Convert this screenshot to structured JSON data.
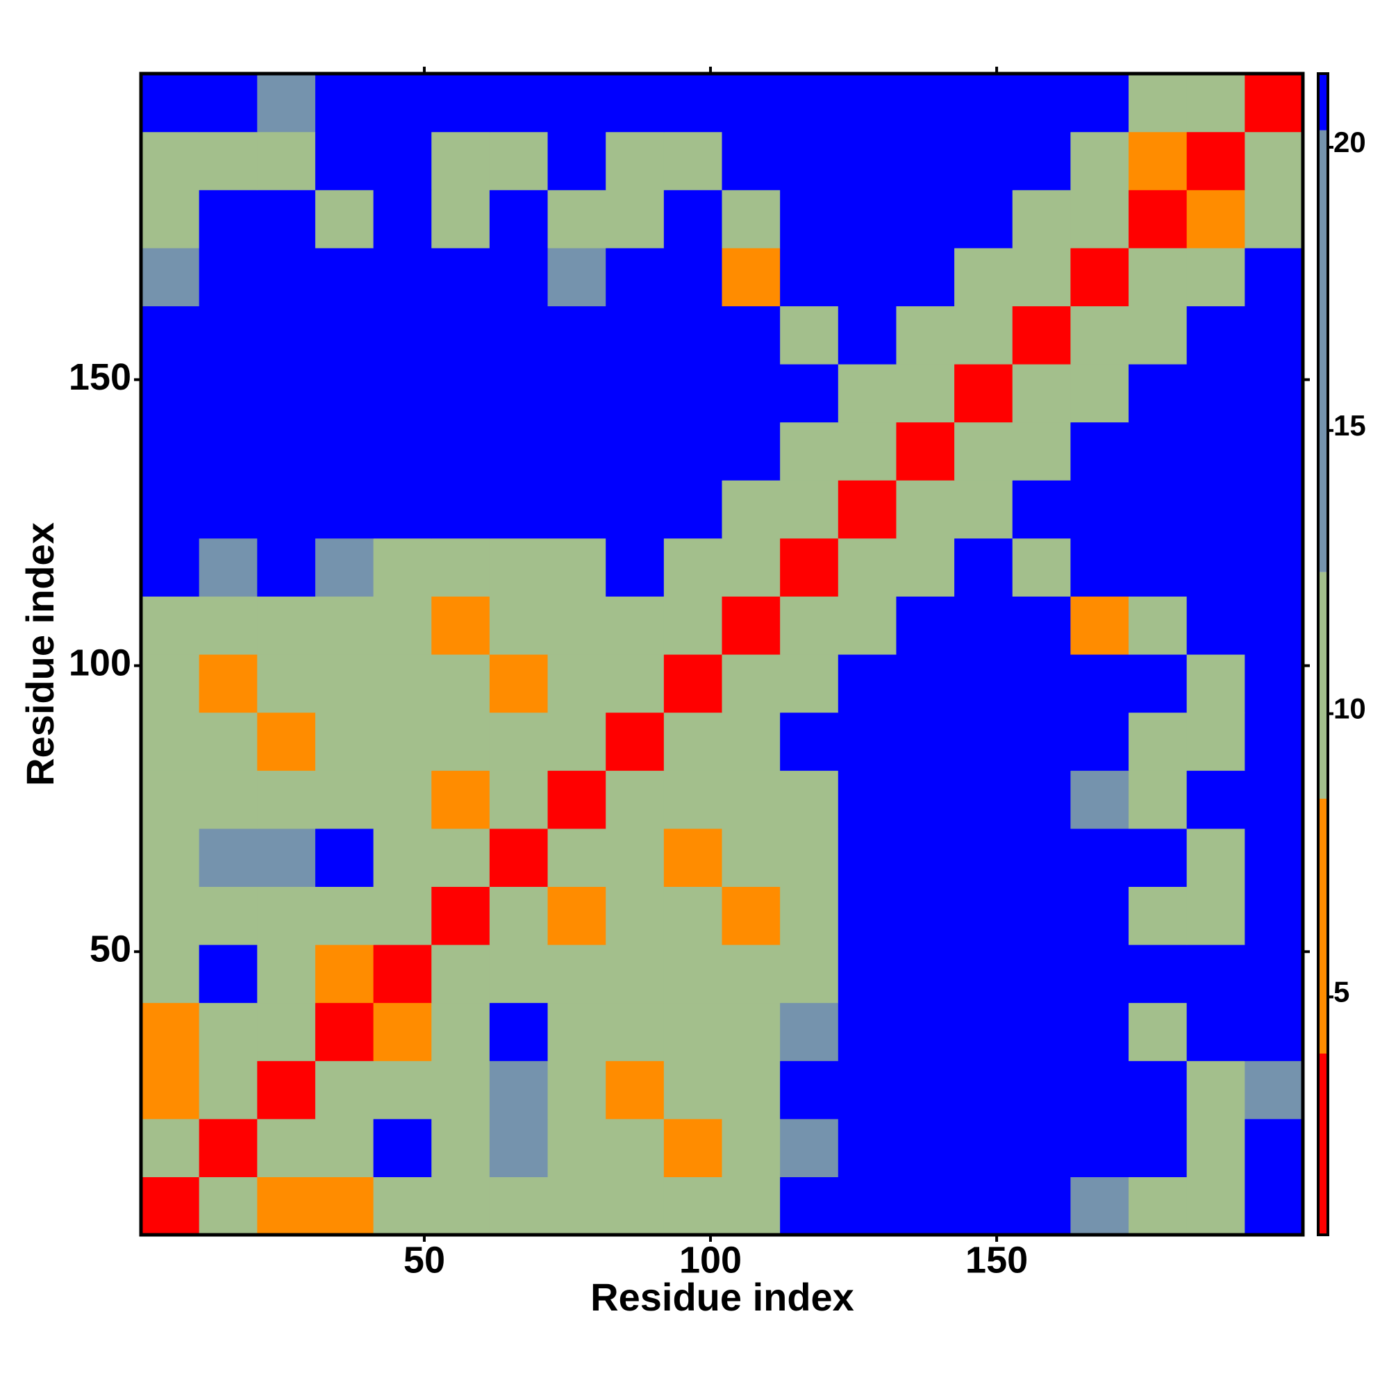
{
  "chart_data": {
    "type": "heatmap",
    "x_label": "Residue index",
    "y_label": "Residue index",
    "xlim": [
      0.5,
      203.5
    ],
    "ylim": [
      0.5,
      203.5
    ],
    "xticks": [
      50,
      100,
      150
    ],
    "yticks": [
      50,
      100,
      150
    ],
    "z": [
      [
        3,
        9,
        6,
        6,
        11,
        11,
        11,
        11,
        11,
        11,
        11,
        21,
        21,
        21,
        21,
        21,
        15,
        11,
        11,
        21
      ],
      [
        9,
        3,
        9,
        11,
        21,
        11,
        15,
        11,
        11,
        6,
        11,
        15,
        21,
        21,
        21,
        21,
        21,
        21,
        11,
        21
      ],
      [
        6,
        9,
        3,
        9,
        11,
        11,
        15,
        11,
        6,
        11,
        11,
        21,
        21,
        21,
        21,
        21,
        21,
        21,
        11,
        15
      ],
      [
        6,
        11,
        9,
        3,
        6,
        11,
        21,
        11,
        11,
        11,
        11,
        15,
        21,
        21,
        21,
        21,
        21,
        11,
        21,
        21
      ],
      [
        11,
        21,
        11,
        6,
        3,
        9,
        11,
        11,
        11,
        11,
        11,
        11,
        21,
        21,
        21,
        21,
        21,
        21,
        21,
        21
      ],
      [
        11,
        11,
        11,
        11,
        9,
        3,
        9,
        6,
        11,
        11,
        6,
        11,
        21,
        21,
        21,
        21,
        21,
        11,
        11,
        21
      ],
      [
        11,
        15,
        15,
        21,
        11,
        9,
        3,
        9,
        11,
        6,
        11,
        11,
        21,
        21,
        21,
        21,
        21,
        21,
        11,
        21
      ],
      [
        11,
        11,
        11,
        11,
        11,
        6,
        9,
        3,
        9,
        11,
        11,
        11,
        21,
        21,
        21,
        21,
        15,
        11,
        21,
        21
      ],
      [
        11,
        11,
        6,
        11,
        11,
        11,
        11,
        9,
        3,
        9,
        11,
        21,
        21,
        21,
        21,
        21,
        21,
        11,
        11,
        21
      ],
      [
        11,
        6,
        11,
        11,
        11,
        11,
        6,
        11,
        9,
        3,
        9,
        11,
        21,
        21,
        21,
        21,
        21,
        21,
        11,
        21
      ],
      [
        11,
        11,
        11,
        11,
        11,
        6,
        11,
        11,
        11,
        9,
        3,
        9,
        11,
        21,
        21,
        21,
        6,
        11,
        21,
        21
      ],
      [
        21,
        15,
        21,
        15,
        11,
        11,
        11,
        11,
        21,
        11,
        9,
        3,
        9,
        11,
        21,
        11,
        21,
        21,
        21,
        21
      ],
      [
        21,
        21,
        21,
        21,
        21,
        21,
        21,
        21,
        21,
        21,
        11,
        9,
        3,
        9,
        11,
        21,
        21,
        21,
        21,
        21
      ],
      [
        21,
        21,
        21,
        21,
        21,
        21,
        21,
        21,
        21,
        21,
        21,
        11,
        9,
        3,
        9,
        11,
        21,
        21,
        21,
        21
      ],
      [
        21,
        21,
        21,
        21,
        21,
        21,
        21,
        21,
        21,
        21,
        21,
        21,
        11,
        9,
        3,
        9,
        11,
        21,
        21,
        21
      ],
      [
        21,
        21,
        21,
        21,
        21,
        21,
        21,
        21,
        21,
        21,
        21,
        11,
        21,
        11,
        9,
        3,
        9,
        11,
        21,
        21
      ],
      [
        15,
        21,
        21,
        21,
        21,
        21,
        21,
        15,
        21,
        21,
        6,
        21,
        21,
        21,
        11,
        9,
        3,
        9,
        11,
        21
      ],
      [
        11,
        21,
        21,
        11,
        21,
        11,
        21,
        11,
        11,
        21,
        11,
        21,
        21,
        21,
        21,
        11,
        9,
        3,
        6,
        11
      ],
      [
        11,
        11,
        11,
        21,
        21,
        11,
        11,
        21,
        11,
        11,
        21,
        21,
        21,
        21,
        21,
        21,
        11,
        6,
        3,
        9
      ],
      [
        21,
        21,
        15,
        21,
        21,
        21,
        21,
        21,
        21,
        21,
        21,
        21,
        21,
        21,
        21,
        21,
        21,
        11,
        9,
        3
      ]
    ],
    "colorbar": {
      "bounds": [
        0.8,
        4,
        8.5,
        12.5,
        20.3,
        21.3
      ],
      "colors": [
        "#ff0000",
        "#ff8c00",
        "#a3bf8c",
        "#7593ad",
        "#0000ff"
      ],
      "ticks": [
        5,
        10,
        15,
        20
      ]
    }
  }
}
